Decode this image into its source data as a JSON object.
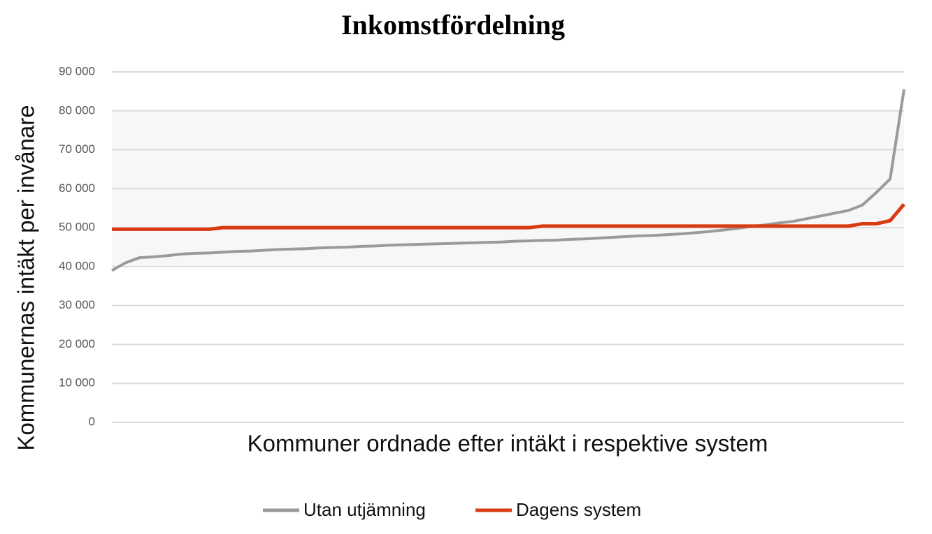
{
  "chart_data": {
    "type": "line",
    "title": "Inkomstfördelning",
    "x_label": "Kommuner ordnade efter intäkt i respektive system",
    "y_label": "Kommunernas intäkt per invånare",
    "ylim": [
      0,
      90000
    ],
    "yticks": [
      0,
      {
        "value": 10000,
        "label": "10 000"
      },
      {
        "value": 20000,
        "label": "20 000"
      },
      {
        "value": 30000,
        "label": "30 000"
      },
      {
        "value": 40000,
        "label": "40 000"
      },
      {
        "value": 50000,
        "label": "50 000"
      },
      {
        "value": 60000,
        "label": "60 000"
      },
      {
        "value": 70000,
        "label": "70 000"
      },
      {
        "value": 80000,
        "label": "80 000"
      },
      {
        "value": 90000,
        "label": "90 000"
      }
    ],
    "grid": true,
    "legend": "bottom",
    "series": [
      {
        "name": "Utan utjämning",
        "color": "#9a9a9a",
        "values": [
          39000,
          41000,
          42300,
          42500,
          42800,
          43200,
          43400,
          43500,
          43700,
          43900,
          44000,
          44200,
          44400,
          44500,
          44600,
          44800,
          44900,
          45000,
          45200,
          45300,
          45500,
          45600,
          45700,
          45800,
          45900,
          46000,
          46100,
          46200,
          46300,
          46500,
          46600,
          46700,
          46800,
          47000,
          47100,
          47300,
          47500,
          47700,
          47900,
          48000,
          48200,
          48400,
          48700,
          49000,
          49400,
          49800,
          50300,
          50700,
          51200,
          51600,
          52300,
          53000,
          53700,
          54400,
          55800,
          59000,
          62500,
          85500
        ]
      },
      {
        "name": "Dagens system",
        "color": "#d93a12",
        "values": [
          49600,
          49600,
          49600,
          49600,
          49600,
          49600,
          49600,
          49600,
          50000,
          50000,
          50000,
          50000,
          50000,
          50000,
          50000,
          50000,
          50000,
          50000,
          50000,
          50000,
          50000,
          50000,
          50000,
          50000,
          50000,
          50000,
          50000,
          50000,
          50000,
          50000,
          50000,
          50400,
          50400,
          50400,
          50400,
          50400,
          50400,
          50400,
          50400,
          50400,
          50400,
          50400,
          50400,
          50400,
          50400,
          50400,
          50400,
          50400,
          50400,
          50400,
          50400,
          50400,
          50400,
          50400,
          51000,
          51000,
          51800,
          56000
        ]
      }
    ]
  }
}
